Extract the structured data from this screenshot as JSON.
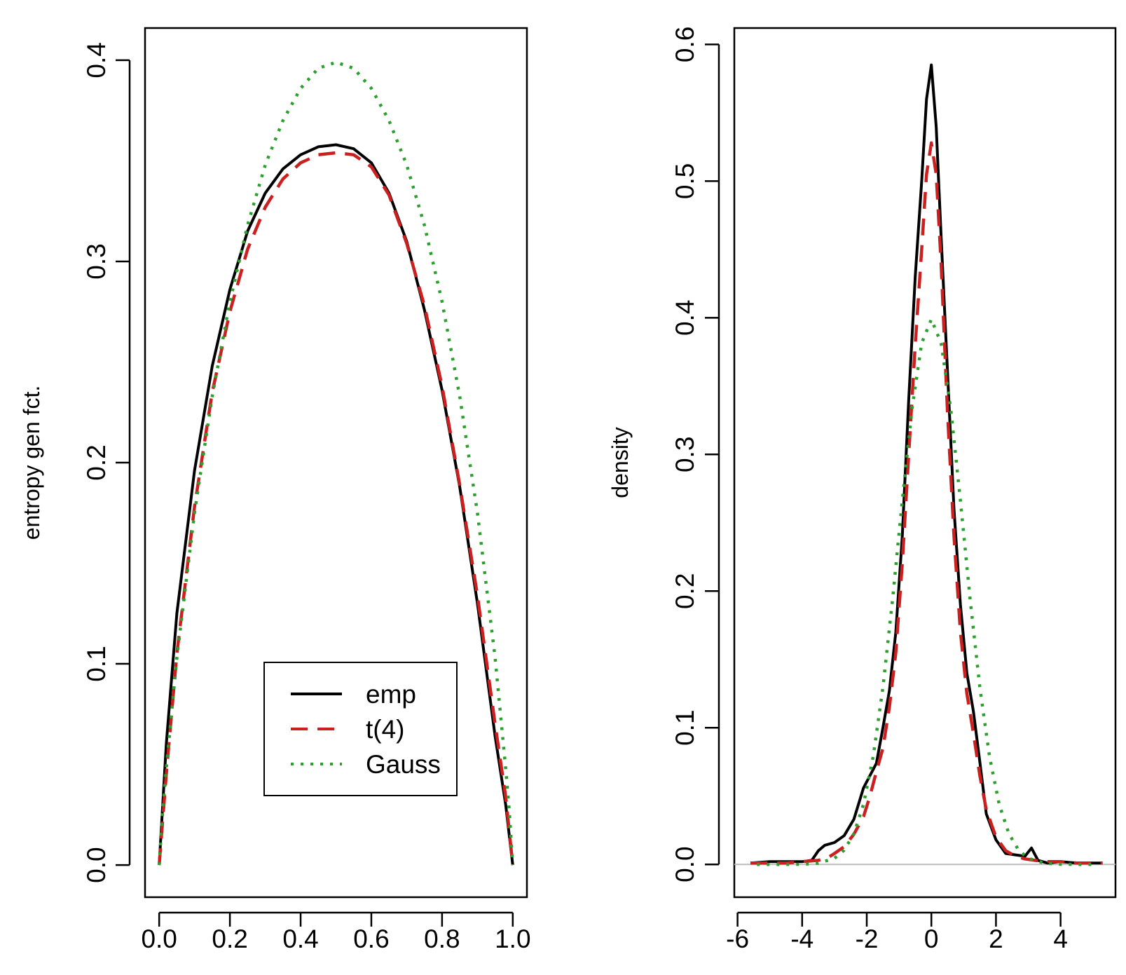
{
  "figure": {
    "background": "#ffffff"
  },
  "chart_data": [
    {
      "type": "line",
      "title": "",
      "xlabel": "",
      "ylabel": "entropy gen fct.",
      "xlim": [
        -0.04,
        1.04
      ],
      "ylim": [
        -0.016,
        0.416
      ],
      "xticks": [
        "0.0",
        "0.2",
        "0.4",
        "0.6",
        "0.8",
        "1.0"
      ],
      "yticks": [
        "0.0",
        "0.1",
        "0.2",
        "0.3",
        "0.4"
      ],
      "grid": false,
      "legend": {
        "position": "bottom-center",
        "entries": [
          {
            "label": "emp",
            "color": "#000000",
            "style": "solid"
          },
          {
            "label": "t(4)",
            "color": "#cc1f1f",
            "style": "dashed"
          },
          {
            "label": "Gauss",
            "color": "#2ca02c",
            "style": "dotted"
          }
        ]
      },
      "series": [
        {
          "name": "emp",
          "color": "#000000",
          "style": "solid",
          "x": [
            0,
            0.02,
            0.05,
            0.1,
            0.15,
            0.2,
            0.25,
            0.3,
            0.35,
            0.4,
            0.45,
            0.5,
            0.55,
            0.6,
            0.65,
            0.7,
            0.75,
            0.8,
            0.85,
            0.9,
            0.95,
            0.98,
            1.0
          ],
          "y": [
            0.0,
            0.06,
            0.125,
            0.196,
            0.248,
            0.286,
            0.315,
            0.334,
            0.346,
            0.353,
            0.357,
            0.358,
            0.356,
            0.349,
            0.334,
            0.31,
            0.276,
            0.236,
            0.188,
            0.13,
            0.064,
            0.03,
            0.0
          ]
        },
        {
          "name": "t(4)",
          "color": "#cc1f1f",
          "style": "dashed",
          "x": [
            0,
            0.02,
            0.05,
            0.1,
            0.15,
            0.2,
            0.25,
            0.3,
            0.35,
            0.4,
            0.45,
            0.5,
            0.55,
            0.6,
            0.65,
            0.7,
            0.75,
            0.8,
            0.85,
            0.9,
            0.95,
            0.98,
            1.0
          ],
          "y": [
            0.0,
            0.045,
            0.105,
            0.178,
            0.235,
            0.275,
            0.306,
            0.327,
            0.341,
            0.349,
            0.353,
            0.354,
            0.353,
            0.347,
            0.333,
            0.309,
            0.278,
            0.238,
            0.189,
            0.134,
            0.07,
            0.034,
            0.0
          ]
        },
        {
          "name": "Gauss",
          "color": "#2ca02c",
          "style": "dotted",
          "x": [
            0,
            0.01,
            0.02,
            0.05,
            0.1,
            0.15,
            0.2,
            0.25,
            0.3,
            0.35,
            0.4,
            0.45,
            0.5,
            0.55,
            0.6,
            0.65,
            0.7,
            0.75,
            0.8,
            0.85,
            0.9,
            0.95,
            0.98,
            0.99,
            1.0
          ],
          "y": [
            0.0,
            0.027,
            0.048,
            0.103,
            0.175,
            0.233,
            0.28,
            0.318,
            0.348,
            0.37,
            0.386,
            0.396,
            0.399,
            0.396,
            0.386,
            0.37,
            0.348,
            0.318,
            0.28,
            0.233,
            0.175,
            0.103,
            0.048,
            0.027,
            0.0
          ]
        }
      ]
    },
    {
      "type": "line",
      "title": "",
      "xlabel": "",
      "ylabel": "density",
      "xlim": [
        -6.1,
        5.7
      ],
      "ylim": [
        -0.024,
        0.612
      ],
      "xticks": [
        "-6",
        "-4",
        "-2",
        "0",
        "2",
        "4"
      ],
      "yticks": [
        "0.0",
        "0.1",
        "0.2",
        "0.3",
        "0.4",
        "0.5",
        "0.6"
      ],
      "grid": false,
      "baseline": {
        "y": 0,
        "color": "#bbbbbb"
      },
      "series": [
        {
          "name": "emp",
          "color": "#000000",
          "style": "solid",
          "x": [
            -5.6,
            -5.0,
            -4.5,
            -4.0,
            -3.7,
            -3.5,
            -3.3,
            -3.0,
            -2.7,
            -2.4,
            -2.1,
            -1.9,
            -1.7,
            -1.5,
            -1.3,
            -1.1,
            -0.9,
            -0.7,
            -0.5,
            -0.3,
            -0.15,
            0.0,
            0.15,
            0.3,
            0.5,
            0.7,
            0.9,
            1.1,
            1.3,
            1.5,
            1.7,
            2.0,
            2.3,
            2.6,
            2.9,
            3.1,
            3.3,
            3.6,
            4.0,
            4.5,
            5.0,
            5.3
          ],
          "y": [
            0.001,
            0.002,
            0.002,
            0.002,
            0.003,
            0.01,
            0.014,
            0.016,
            0.021,
            0.033,
            0.056,
            0.065,
            0.074,
            0.1,
            0.127,
            0.17,
            0.24,
            0.34,
            0.43,
            0.5,
            0.56,
            0.585,
            0.54,
            0.46,
            0.36,
            0.26,
            0.19,
            0.14,
            0.112,
            0.075,
            0.037,
            0.018,
            0.008,
            0.007,
            0.006,
            0.012,
            0.003,
            0.001,
            0.002,
            0.001,
            0.001,
            0.001
          ]
        },
        {
          "name": "t(4)",
          "color": "#cc1f1f",
          "style": "dashed",
          "x": [
            -5.6,
            -5.0,
            -4.5,
            -4.0,
            -3.5,
            -3.2,
            -3.0,
            -2.7,
            -2.4,
            -2.1,
            -1.9,
            -1.7,
            -1.5,
            -1.3,
            -1.1,
            -0.9,
            -0.7,
            -0.5,
            -0.3,
            -0.15,
            0.0,
            0.15,
            0.3,
            0.5,
            0.7,
            0.9,
            1.1,
            1.3,
            1.5,
            1.7,
            2.0,
            2.3,
            2.6,
            2.9,
            3.2,
            3.5,
            4.0,
            4.5,
            5.0,
            5.3
          ],
          "y": [
            0.001,
            0.001,
            0.001,
            0.002,
            0.003,
            0.005,
            0.008,
            0.013,
            0.022,
            0.035,
            0.05,
            0.068,
            0.085,
            0.115,
            0.155,
            0.22,
            0.3,
            0.38,
            0.45,
            0.505,
            0.528,
            0.505,
            0.44,
            0.33,
            0.24,
            0.17,
            0.125,
            0.096,
            0.065,
            0.04,
            0.02,
            0.01,
            0.006,
            0.004,
            0.003,
            0.002,
            0.002,
            0.001,
            0.001,
            0.001
          ]
        },
        {
          "name": "Gauss",
          "color": "#2ca02c",
          "style": "dotted",
          "x": [
            -5.4,
            -5.0,
            -4.5,
            -4.0,
            -3.5,
            -3.0,
            -2.7,
            -2.4,
            -2.1,
            -1.8,
            -1.5,
            -1.2,
            -0.9,
            -0.6,
            -0.3,
            0.0,
            0.3,
            0.6,
            0.9,
            1.2,
            1.5,
            1.8,
            2.1,
            2.4,
            2.7,
            3.0,
            3.5,
            4.0,
            4.5,
            5.0
          ],
          "y": [
            0.0,
            0.0,
            0.0,
            0.0001,
            0.0009,
            0.0044,
            0.0104,
            0.0224,
            0.044,
            0.079,
            0.1295,
            0.1942,
            0.2661,
            0.3332,
            0.3814,
            0.3989,
            0.3814,
            0.3332,
            0.2661,
            0.1942,
            0.1295,
            0.079,
            0.044,
            0.0224,
            0.0104,
            0.0044,
            0.0009,
            0.0001,
            0.0,
            0.0
          ]
        }
      ]
    }
  ]
}
